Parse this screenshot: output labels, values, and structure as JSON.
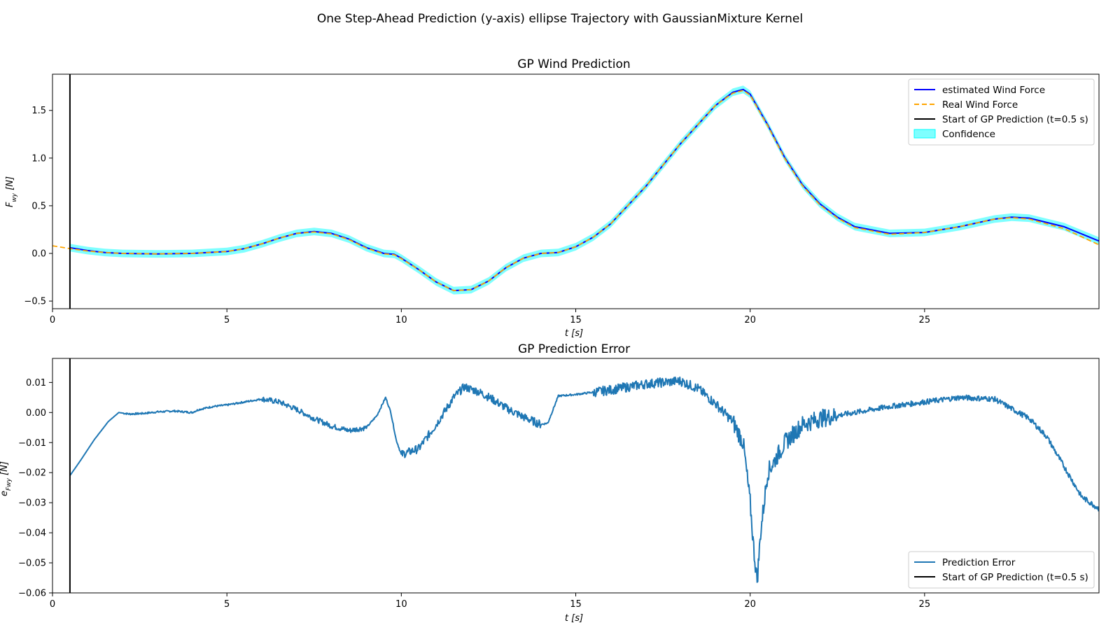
{
  "figure": {
    "suptitle": "One Step-Ahead Prediction (y-axis) ellipse Trajectory with GaussianMixture Kernel"
  },
  "chart_data": [
    {
      "type": "line",
      "title": "GP Wind Prediction",
      "xlabel": "t [s]",
      "ylabel": "F_wy [N]",
      "xlim": [
        0,
        30
      ],
      "ylim": [
        -0.58,
        1.88
      ],
      "xticks": [
        0,
        5,
        10,
        15,
        20,
        25
      ],
      "xtick_labels": [
        "0",
        "5",
        "10",
        "15",
        "20",
        "25"
      ],
      "yticks": [
        -0.5,
        0.0,
        0.5,
        1.0,
        1.5
      ],
      "ytick_labels": [
        "−0.5",
        "0.0",
        "0.5",
        "1.0",
        "1.5"
      ],
      "grid": false,
      "legend_position": "top-right",
      "vline": {
        "x": 0.5,
        "label": "Start of GP Prediction (t=0.5 s)",
        "color": "#000000"
      },
      "confidence": {
        "label": "Confidence",
        "color": "#00ffff",
        "alpha": 0.5,
        "halfwidth": 0.04
      },
      "series": [
        {
          "name": "estimated Wind Force",
          "color": "#0000ff",
          "style": "solid",
          "x": [
            0.5,
            1,
            1.5,
            2,
            3,
            4,
            5,
            5.5,
            6,
            6.5,
            7,
            7.5,
            8,
            8.5,
            9,
            9.5,
            9.8,
            10,
            10.5,
            11,
            11.5,
            12,
            12.5,
            13,
            13.5,
            14,
            14.5,
            15,
            15.5,
            16,
            17,
            18,
            19,
            19.5,
            19.8,
            20,
            20.5,
            21,
            21.5,
            22,
            22.5,
            23,
            24,
            25,
            26,
            27,
            27.5,
            28,
            29,
            30
          ],
          "values": [
            0.06,
            0.03,
            0.01,
            0.0,
            -0.005,
            0.0,
            0.02,
            0.05,
            0.1,
            0.16,
            0.21,
            0.23,
            0.21,
            0.15,
            0.06,
            0.0,
            -0.01,
            -0.05,
            -0.17,
            -0.3,
            -0.39,
            -0.38,
            -0.29,
            -0.15,
            -0.05,
            0.0,
            0.01,
            0.07,
            0.17,
            0.31,
            0.7,
            1.15,
            1.55,
            1.69,
            1.72,
            1.67,
            1.35,
            1.0,
            0.72,
            0.52,
            0.38,
            0.28,
            0.21,
            0.22,
            0.28,
            0.36,
            0.38,
            0.37,
            0.28,
            0.13
          ]
        },
        {
          "name": "Real Wind Force",
          "color": "#ffa500",
          "style": "dashed",
          "x": [
            0,
            0.5,
            1,
            1.5,
            2,
            3,
            4,
            5,
            5.5,
            6,
            6.5,
            7,
            7.5,
            8,
            8.5,
            9,
            9.5,
            9.8,
            10,
            10.5,
            11,
            11.5,
            12,
            12.5,
            13,
            13.5,
            14,
            14.5,
            15,
            15.5,
            16,
            17,
            18,
            19,
            19.5,
            19.8,
            20,
            20.5,
            21,
            21.5,
            22,
            22.5,
            23,
            24,
            25,
            26,
            27,
            27.5,
            28,
            29,
            30
          ],
          "values": [
            0.08,
            0.05,
            0.025,
            0.01,
            0.0,
            -0.005,
            0.0,
            0.02,
            0.05,
            0.1,
            0.16,
            0.21,
            0.225,
            0.205,
            0.145,
            0.055,
            -0.005,
            -0.015,
            -0.055,
            -0.17,
            -0.3,
            -0.39,
            -0.38,
            -0.29,
            -0.15,
            -0.05,
            0.0,
            0.01,
            0.07,
            0.17,
            0.31,
            0.7,
            1.15,
            1.55,
            1.68,
            1.71,
            1.66,
            1.34,
            0.99,
            0.71,
            0.51,
            0.37,
            0.27,
            0.2,
            0.22,
            0.28,
            0.36,
            0.375,
            0.36,
            0.26,
            0.09
          ]
        }
      ]
    },
    {
      "type": "line",
      "title": "GP Prediction Error",
      "xlabel": "t [s]",
      "ylabel": "e_Fwy [N]",
      "xlim": [
        0,
        30
      ],
      "ylim": [
        -0.06,
        0.018
      ],
      "xticks": [
        0,
        5,
        10,
        15,
        20,
        25
      ],
      "xtick_labels": [
        "0",
        "5",
        "10",
        "15",
        "20",
        "25"
      ],
      "yticks": [
        -0.06,
        -0.05,
        -0.04,
        -0.03,
        -0.02,
        -0.01,
        0.0,
        0.01
      ],
      "ytick_labels": [
        "−0.06",
        "−0.05",
        "−0.04",
        "−0.03",
        "−0.02",
        "−0.01",
        "0.00",
        "0.01"
      ],
      "grid": false,
      "legend_position": "bottom-right",
      "vline": {
        "x": 0.5,
        "label": "Start of GP Prediction (t=0.5 s)",
        "color": "#000000"
      },
      "series": [
        {
          "name": "Prediction Error",
          "color": "#1f77b4",
          "style": "solid",
          "x": [
            0.5,
            0.8,
            1.2,
            1.6,
            1.9,
            2.2,
            2.6,
            3,
            3.5,
            4,
            4.2,
            4.6,
            5,
            5.5,
            6,
            6.5,
            7,
            7.5,
            8,
            8.5,
            9,
            9.3,
            9.55,
            9.7,
            9.85,
            10,
            10.5,
            11,
            11.5,
            11.8,
            12.2,
            12.6,
            13,
            13.5,
            14,
            14.2,
            14.5,
            15,
            16,
            17,
            18,
            18.5,
            19,
            19.5,
            19.8,
            20,
            20.1,
            20.2,
            20.3,
            20.5,
            21,
            21.5,
            22,
            23,
            24,
            25,
            26,
            27,
            28,
            28.5,
            29,
            29.5,
            30
          ],
          "values": [
            -0.021,
            -0.016,
            -0.009,
            -0.003,
            0.0,
            -0.0005,
            -0.0003,
            0.0002,
            0.0005,
            0.0,
            0.001,
            0.002,
            0.0025,
            0.0035,
            0.0045,
            0.0035,
            0.001,
            -0.002,
            -0.0045,
            -0.006,
            -0.005,
            -0.001,
            0.005,
            0.0,
            -0.009,
            -0.014,
            -0.012,
            -0.004,
            0.005,
            0.0085,
            0.007,
            0.0045,
            0.0015,
            -0.0015,
            -0.004,
            -0.0035,
            0.0055,
            0.006,
            0.0075,
            0.0095,
            0.0105,
            0.008,
            0.003,
            -0.003,
            -0.01,
            -0.03,
            -0.045,
            -0.056,
            -0.04,
            -0.02,
            -0.01,
            -0.004,
            -0.002,
            0.0,
            0.002,
            0.0035,
            0.005,
            0.0045,
            -0.002,
            -0.008,
            -0.018,
            -0.028,
            -0.032
          ]
        }
      ]
    }
  ]
}
